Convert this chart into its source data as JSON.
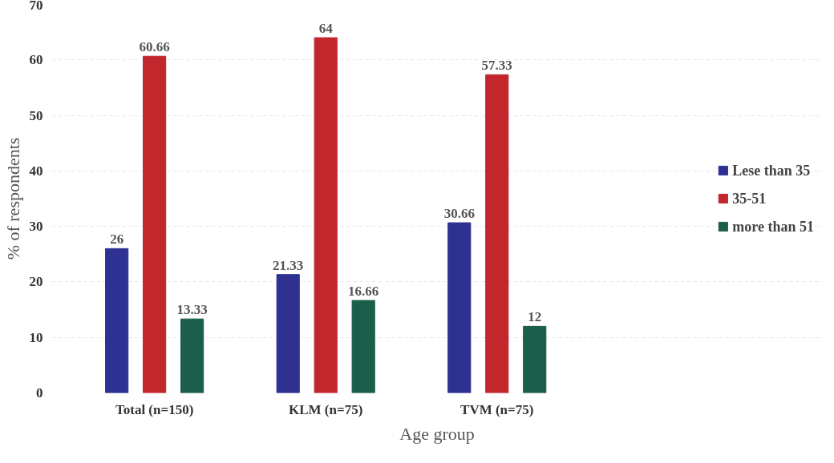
{
  "chart_data": {
    "type": "bar",
    "xlabel": "Age group",
    "ylabel": "% of respondents",
    "categories": [
      "Total (n=150)",
      "KLM (n=75)",
      "TVM (n=75)"
    ],
    "series": [
      {
        "name": "Lese than 35",
        "color": "#2e3192",
        "values": [
          26,
          21.33,
          30.66
        ]
      },
      {
        "name": "35-51",
        "color": "#c1272d",
        "values": [
          60.66,
          64,
          57.33
        ]
      },
      {
        "name": "more than 51",
        "color": "#1b5e4b",
        "values": [
          13.33,
          16.66,
          12
        ]
      }
    ],
    "ylim": [
      0,
      70
    ],
    "yticks": [
      0,
      10,
      20,
      30,
      40,
      50,
      60,
      70
    ],
    "grid": "y",
    "legend": "right",
    "data_labels": true
  }
}
